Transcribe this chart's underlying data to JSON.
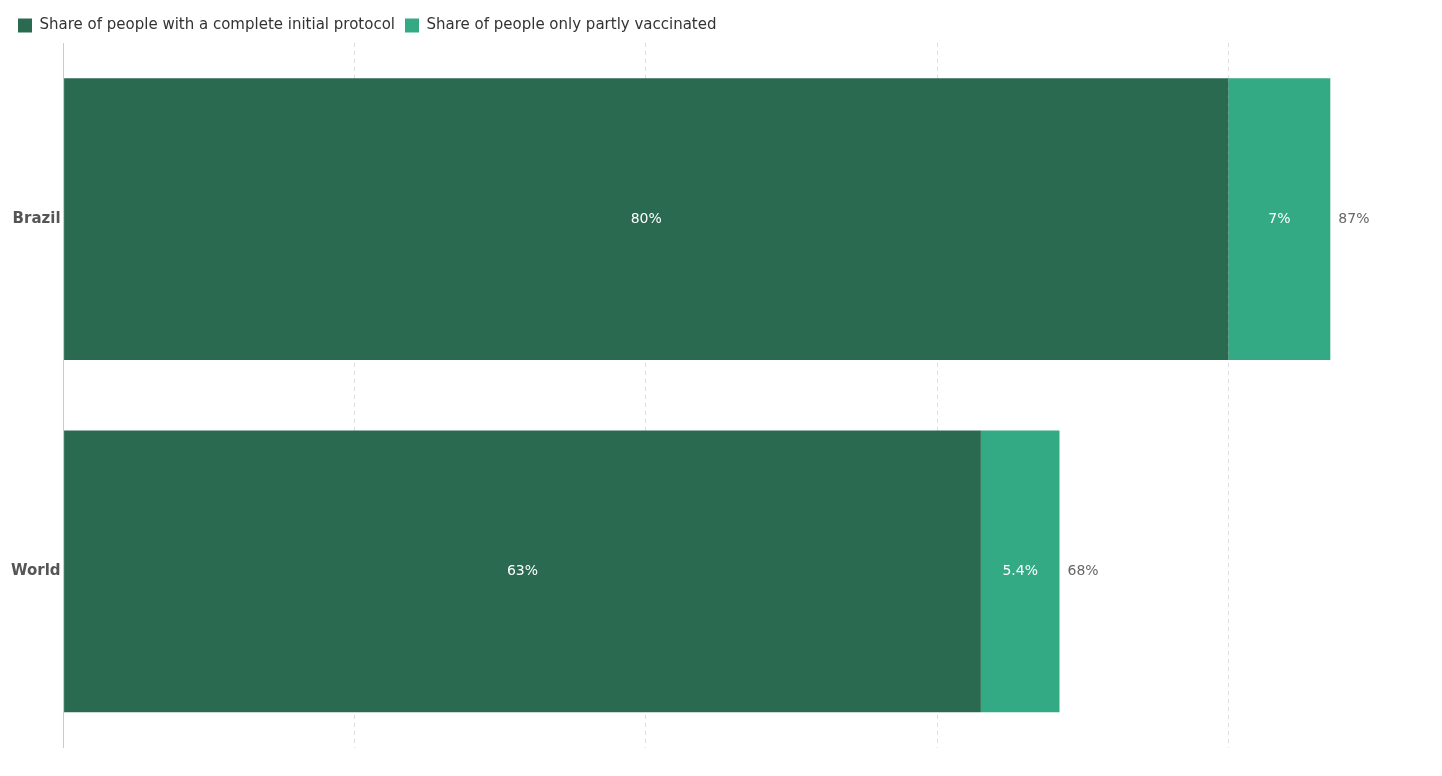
{
  "chart_data": {
    "type": "bar",
    "orientation": "horizontal",
    "stacked": true,
    "categories": [
      "Brazil",
      "World"
    ],
    "series": [
      {
        "name": "Share of people with a complete initial protocol",
        "color": "#2a6a50",
        "values": [
          80,
          63
        ],
        "value_labels": [
          "80%",
          "63%"
        ]
      },
      {
        "name": "Share of people only partly vaccinated",
        "color": "#33aa84",
        "values": [
          7,
          5.4
        ],
        "value_labels": [
          "7%",
          "5.4%"
        ]
      }
    ],
    "totals": [
      "87%",
      "68%"
    ],
    "xticks": [
      {
        "value": 0,
        "label": null
      },
      {
        "value": 20,
        "label": null
      },
      {
        "value": 40,
        "label": null
      },
      {
        "value": 60,
        "label": null
      },
      {
        "value": 80,
        "label": null
      }
    ],
    "grid": "x",
    "legend": "top left"
  }
}
